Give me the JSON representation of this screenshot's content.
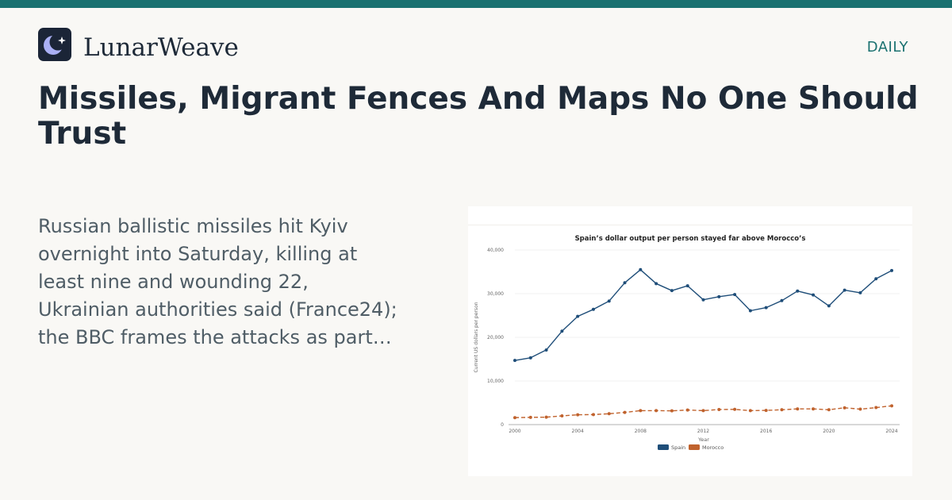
{
  "brand": {
    "name": "LunarWeave",
    "section": "DAILY",
    "logo_icon": "crescent-moon-sparkle-icon",
    "accent_color": "#1a7170"
  },
  "article": {
    "headline": "Missiles, Migrant Fences And Maps No One Should Trust",
    "summary": "Russian ballistic missiles hit Kyiv overnight into Saturday, killing at least nine and wounding 22, Ukrainian authorities said (France24); the BBC frames the attacks as part…"
  },
  "chart_data": {
    "type": "line",
    "title": "Spain’s dollar output per person stayed far above Morocco’s",
    "xlabel": "Year",
    "ylabel": "Current US dollars per person",
    "xlim": [
      2000,
      2024
    ],
    "ylim": [
      0,
      40000
    ],
    "x_ticks": [
      2000,
      2004,
      2008,
      2012,
      2016,
      2020,
      2024
    ],
    "y_ticks": [
      0,
      10000,
      20000,
      30000,
      40000
    ],
    "y_tick_labels": [
      "0",
      "10,000",
      "20,000",
      "30,000",
      "40,000"
    ],
    "grid": "horizontal",
    "legend_position": "bottom-center",
    "x": [
      2000,
      2001,
      2002,
      2003,
      2004,
      2005,
      2006,
      2007,
      2008,
      2009,
      2010,
      2011,
      2012,
      2013,
      2014,
      2015,
      2016,
      2017,
      2018,
      2019,
      2020,
      2021,
      2022,
      2023,
      2024
    ],
    "series": [
      {
        "name": "Spain",
        "color": "#1f4e79",
        "style": "solid",
        "values": [
          14700,
          15300,
          17100,
          21400,
          24800,
          26400,
          28300,
          32500,
          35500,
          32300,
          30700,
          31800,
          28600,
          29300,
          29800,
          26100,
          26800,
          28400,
          30600,
          29700,
          27200,
          30800,
          30200,
          33400,
          35300
        ]
      },
      {
        "name": "Morocco",
        "color": "#c0622d",
        "style": "dashed",
        "values": [
          1600,
          1650,
          1700,
          2000,
          2250,
          2300,
          2500,
          2800,
          3200,
          3200,
          3150,
          3350,
          3200,
          3450,
          3500,
          3200,
          3250,
          3400,
          3600,
          3600,
          3400,
          3850,
          3550,
          3900,
          4300
        ]
      }
    ]
  }
}
